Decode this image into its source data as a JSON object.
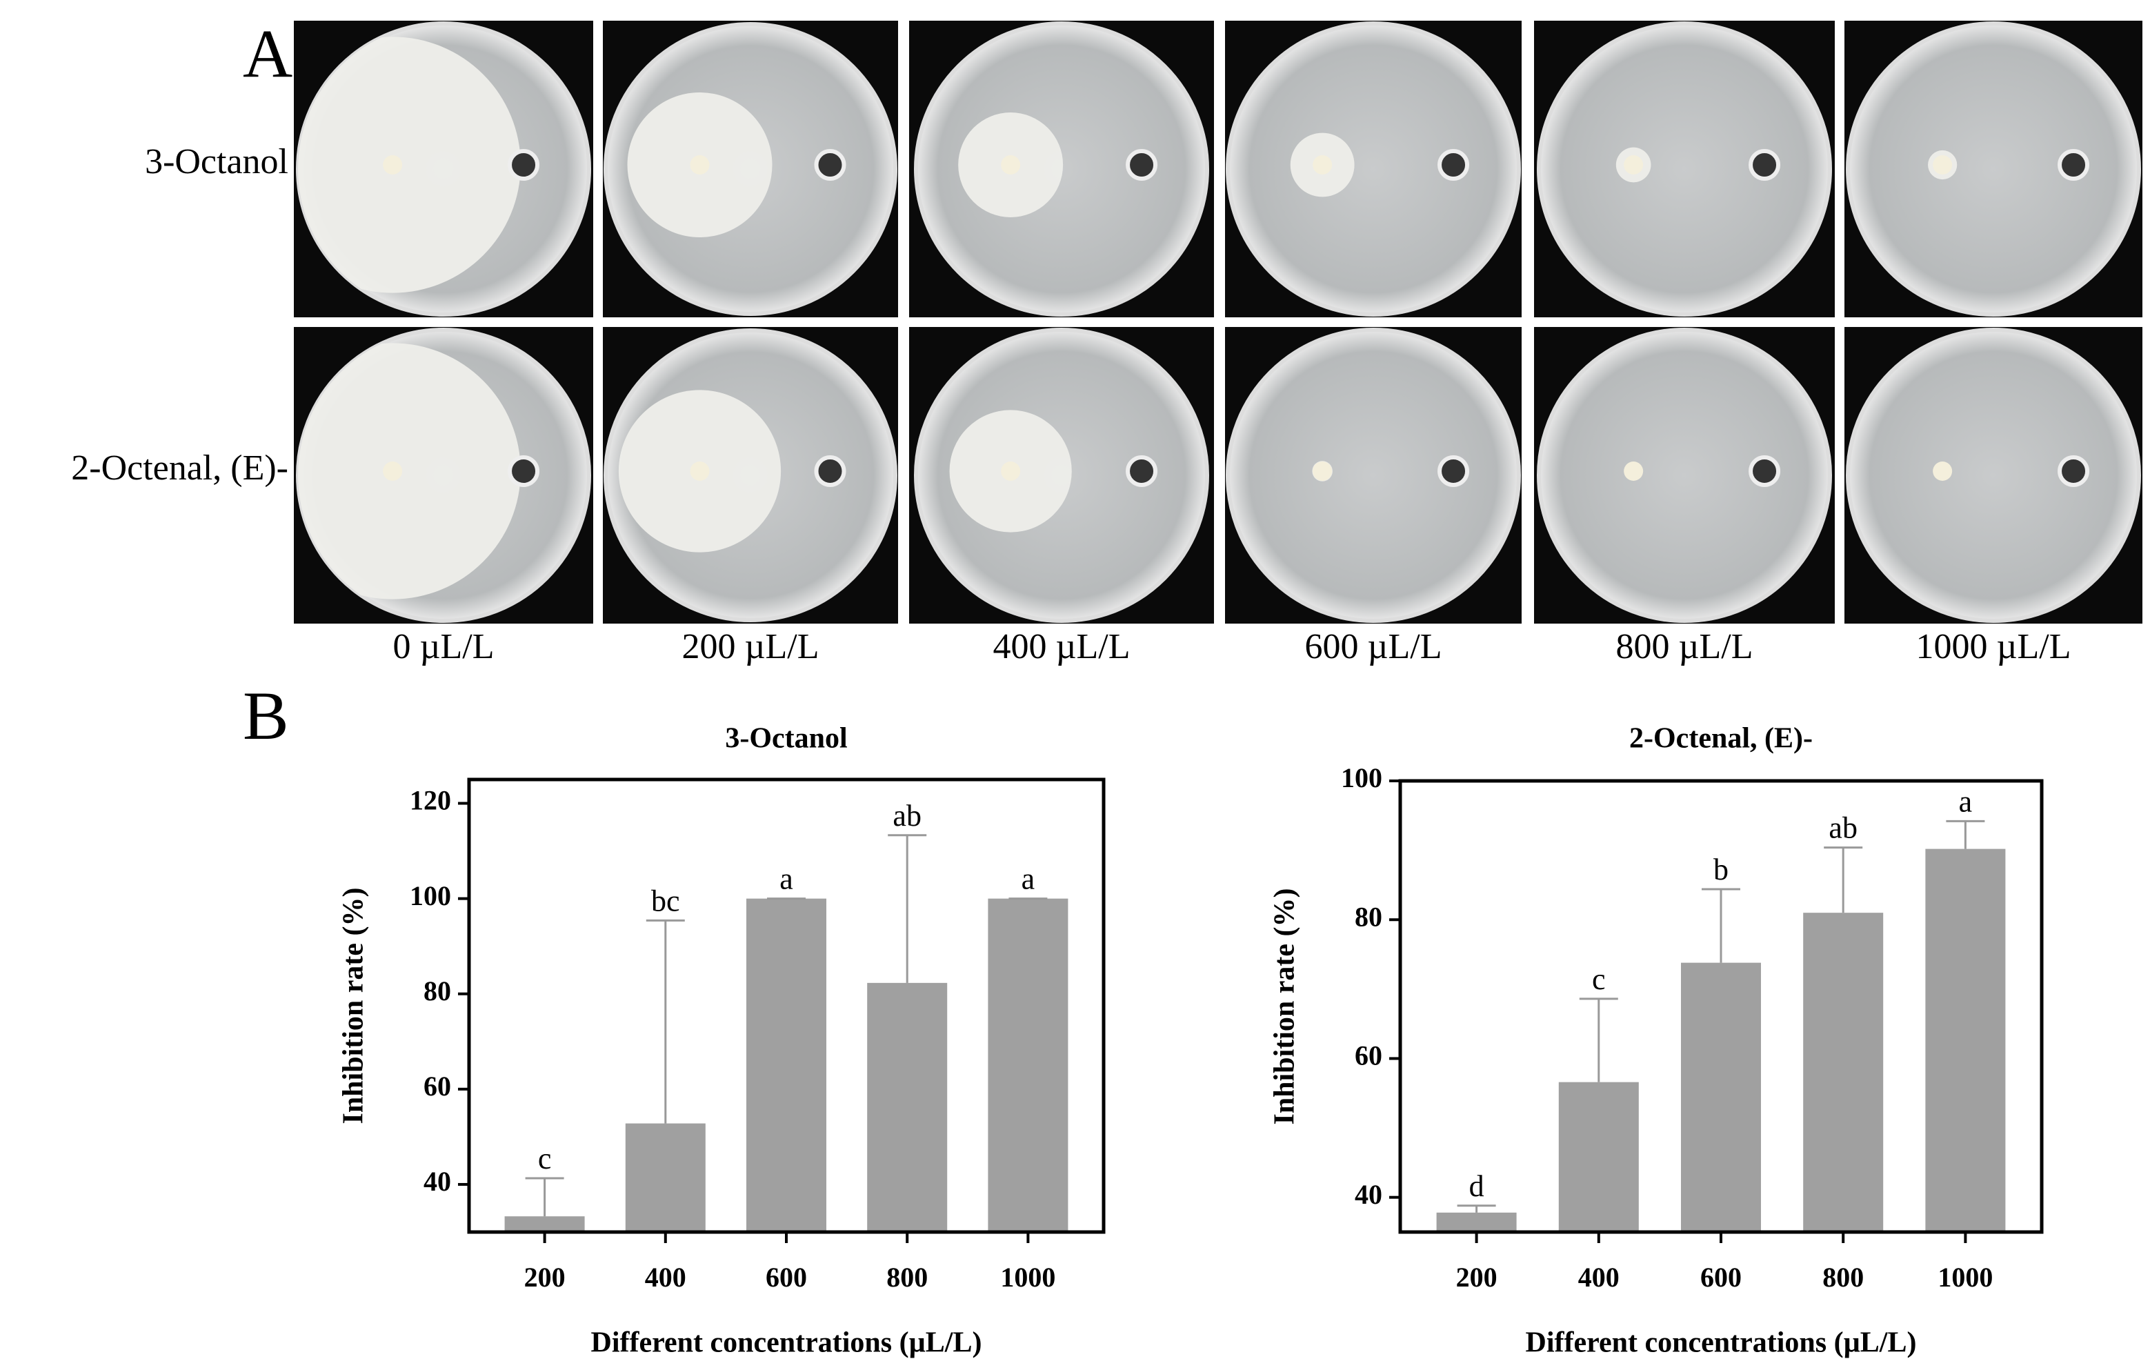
{
  "panel_a": {
    "label": "A",
    "rows": [
      "3-Octanol",
      "2-Octenal, (E)-"
    ],
    "columns": [
      "0 µL/L",
      "200 µL/L",
      "400 µL/L",
      "600 µL/L",
      "800 µL/L",
      "1000 µL/L"
    ]
  },
  "panel_b": {
    "label": "B"
  },
  "chart_data": [
    {
      "type": "bar",
      "title": "3-Octanol",
      "xlabel": "Different concentrations (µL/L)",
      "ylabel": "Inhibition rate (%)",
      "categories": [
        "200",
        "400",
        "600",
        "800",
        "1000"
      ],
      "values": [
        33.3,
        52.8,
        100,
        82.3,
        100
      ],
      "errors": [
        8,
        42.6,
        0,
        31,
        0
      ],
      "annotations": [
        "c",
        "bc",
        "a",
        "ab",
        "a"
      ],
      "color": "#a0a0a0",
      "ylim": [
        30,
        125
      ],
      "yticks": [
        40,
        60,
        80,
        100,
        120
      ]
    },
    {
      "type": "bar",
      "title": "2-Octenal, (E)-",
      "xlabel": "Different concentrations (µL/L)",
      "ylabel": "Inhibition rate (%)",
      "categories": [
        "200",
        "400",
        "600",
        "800",
        "1000"
      ],
      "values": [
        37.8,
        56.6,
        73.8,
        81,
        90.2
      ],
      "errors": [
        1,
        12,
        10.6,
        9.4,
        4
      ],
      "annotations": [
        "d",
        "c",
        "b",
        "ab",
        "a"
      ],
      "color": "#a0a0a0",
      "ylim": [
        35,
        100
      ],
      "yticks": [
        40,
        60,
        80,
        100
      ]
    }
  ]
}
